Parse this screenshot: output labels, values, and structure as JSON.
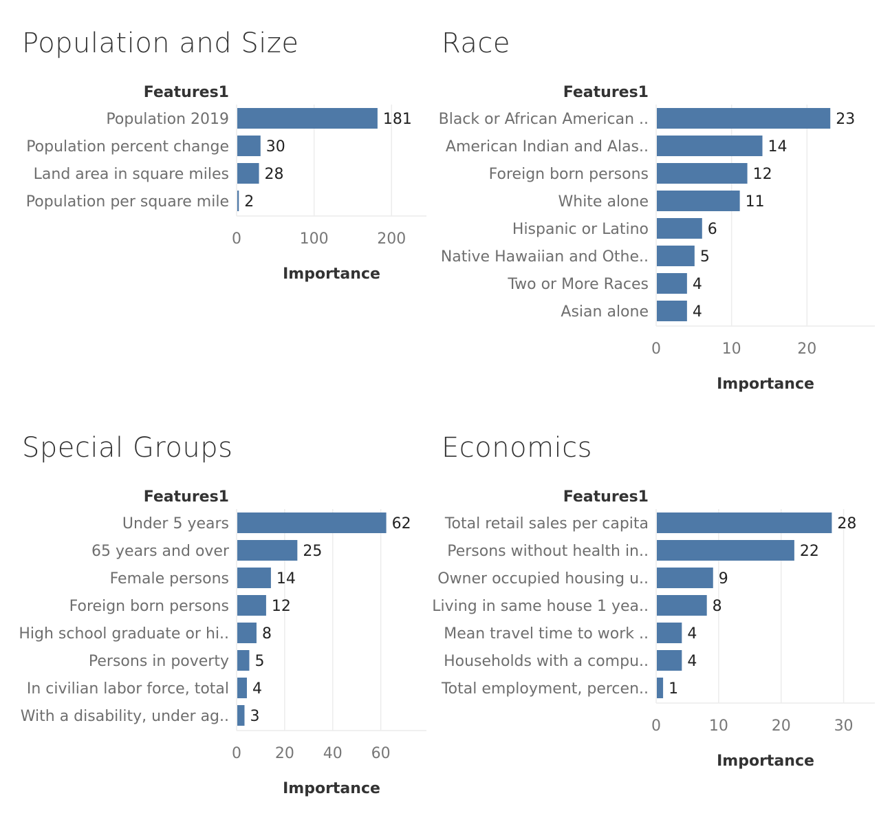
{
  "bar_color": "#4e79a7",
  "grid_color": "#ececec",
  "chart_data": [
    {
      "type": "bar",
      "orientation": "horizontal",
      "title": "Population and Size",
      "row_header": "Features1",
      "xlabel": "Importance",
      "categories": [
        "Population 2019",
        "Population percent change",
        "Land area in square miles",
        "Population per square mile"
      ],
      "values": [
        181,
        30,
        28,
        2
      ],
      "xlim": [
        0,
        245
      ],
      "xticks": [
        0,
        100,
        200
      ]
    },
    {
      "type": "bar",
      "orientation": "horizontal",
      "title": "Race",
      "row_header": "Features1",
      "xlabel": "Importance",
      "categories": [
        "Black or African American ..",
        "American Indian and Alas..",
        "Foreign born persons",
        "White alone",
        "Hispanic or Latino",
        "Native Hawaiian and Othe..",
        "Two or More Races",
        "Asian alone"
      ],
      "values": [
        23,
        14,
        12,
        11,
        6,
        5,
        4,
        4
      ],
      "xlim": [
        0,
        29
      ],
      "xticks": [
        0,
        10,
        20
      ]
    },
    {
      "type": "bar",
      "orientation": "horizontal",
      "title": "Special Groups",
      "row_header": "Features1",
      "xlabel": "Importance",
      "categories": [
        "Under 5 years",
        "65 years and over",
        "Female persons",
        "Foreign born persons",
        "High school graduate or hi..",
        "Persons in poverty",
        "In civilian labor force, total",
        "With a disability, under ag.."
      ],
      "values": [
        62,
        25,
        14,
        12,
        8,
        5,
        4,
        3
      ],
      "xlim": [
        0,
        79
      ],
      "xticks": [
        0,
        20,
        40,
        60
      ]
    },
    {
      "type": "bar",
      "orientation": "horizontal",
      "title": "Economics",
      "row_header": "Features1",
      "xlabel": "Importance",
      "categories": [
        "Total retail sales per capita",
        "Persons without health in..",
        "Owner occupied housing u..",
        "Living in same house 1 yea..",
        "Mean travel time to work ..",
        "Households with a compu..",
        "Total employment, percen.."
      ],
      "values": [
        28,
        22,
        9,
        8,
        4,
        4,
        1
      ],
      "xlim": [
        0,
        35
      ],
      "xticks": [
        0,
        10,
        20,
        30
      ]
    }
  ]
}
